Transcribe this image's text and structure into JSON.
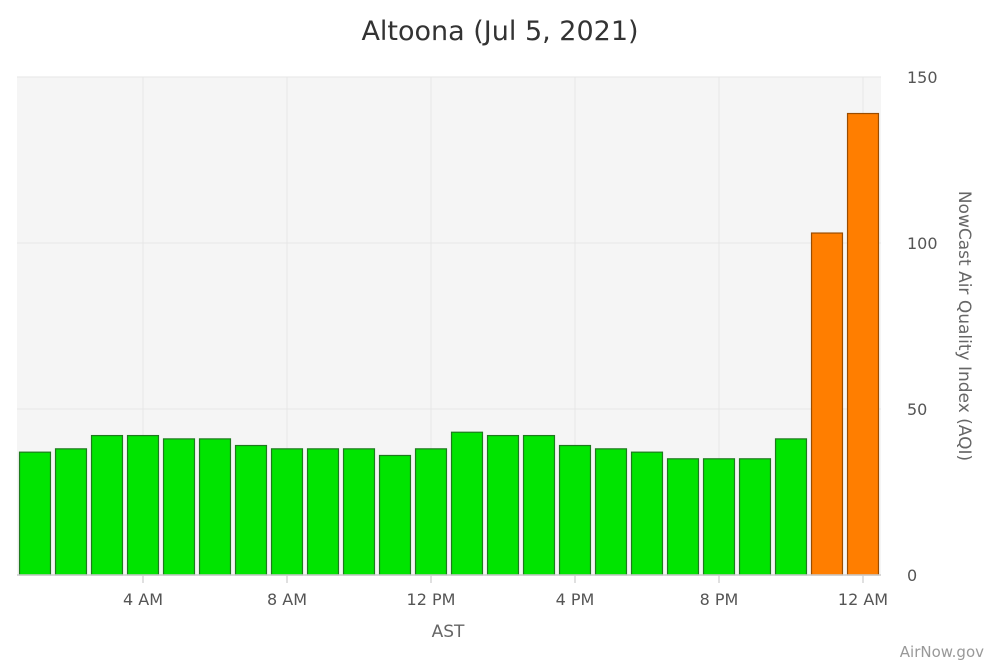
{
  "chart_data": {
    "type": "bar",
    "title": "Altoona (Jul 5, 2021)",
    "xlabel": "AST",
    "ylabel": "NowCast Air Quality Index (AQI)",
    "ylim": [
      0,
      150
    ],
    "y_ticks": [
      0,
      50,
      100,
      150
    ],
    "x_tick_labels": [
      "4 AM",
      "8 AM",
      "12 PM",
      "4 PM",
      "8 PM",
      "12 AM"
    ],
    "x_tick_indices": [
      3,
      7,
      11,
      15,
      19,
      23
    ],
    "grid": true,
    "legend": "none",
    "categories": [
      "1 AM",
      "2 AM",
      "3 AM",
      "4 AM",
      "5 AM",
      "6 AM",
      "7 AM",
      "8 AM",
      "9 AM",
      "10 AM",
      "11 AM",
      "12 PM",
      "1 PM",
      "2 PM",
      "3 PM",
      "4 PM",
      "5 PM",
      "6 PM",
      "7 PM",
      "8 PM",
      "9 PM",
      "10 PM",
      "11 PM",
      "12 AM"
    ],
    "values": [
      37,
      38,
      42,
      42,
      41,
      41,
      39,
      38,
      38,
      38,
      36,
      38,
      43,
      42,
      42,
      39,
      38,
      37,
      35,
      35,
      35,
      41,
      103,
      139
    ],
    "colors": {
      "good": "#00e400",
      "good_border": "#1e7a1e",
      "usg": "#ff7e00",
      "usg_border": "#9a4c00",
      "plot_background": "#f5f5f5",
      "grid": "#e6e6e6",
      "axis": "#cccccc"
    },
    "usg_threshold": 100
  },
  "credit": "AirNow.gov"
}
